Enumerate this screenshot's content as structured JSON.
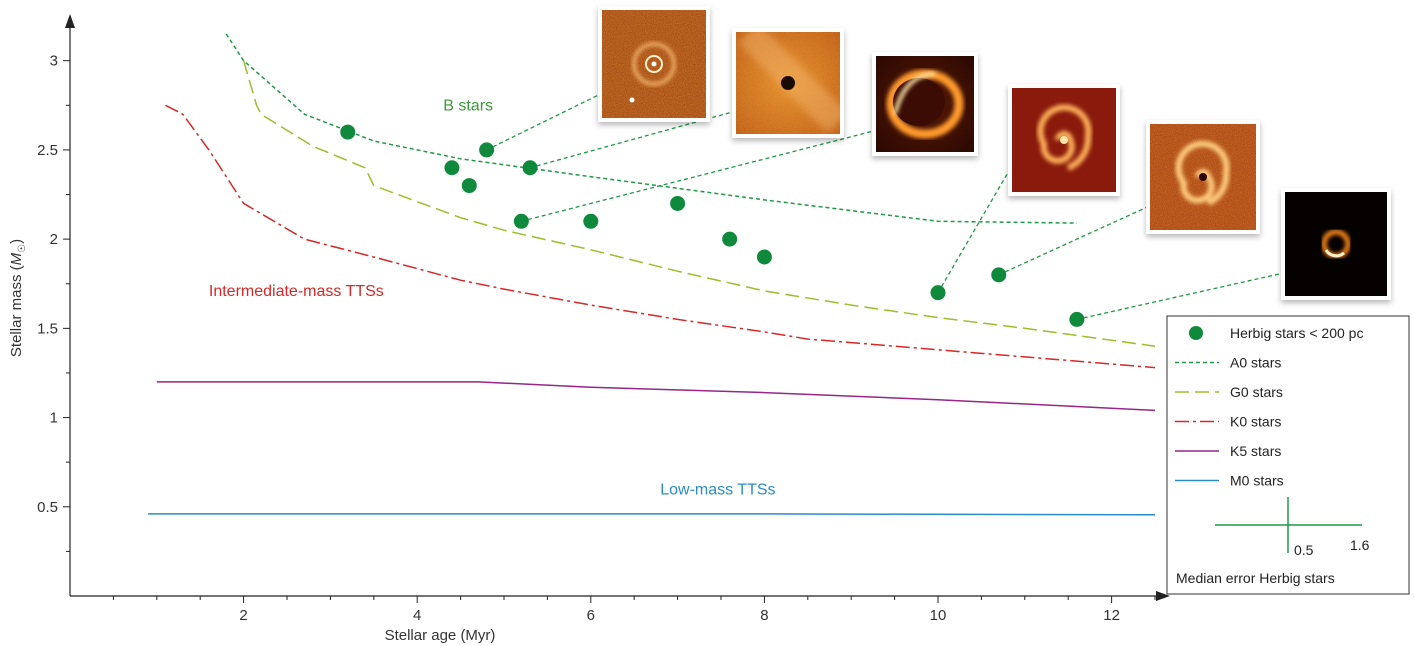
{
  "chart_data": {
    "type": "line",
    "xlabel": "Stellar age (Myr)",
    "ylabel_main": "Stellar mass (",
    "ylabel_var": "M",
    "ylabel_sub": "☉",
    "ylabel_end": ")",
    "xlim": [
      0,
      12.5
    ],
    "ylim": [
      0,
      3.2
    ],
    "x_ticks": [
      2,
      4,
      6,
      8,
      10,
      12
    ],
    "x_ticks_minor_step": 0.5,
    "y_ticks": [
      0.5,
      1,
      1.5,
      2,
      2.5,
      3
    ],
    "y_tick_labels": [
      "0.5",
      "1",
      "1.5",
      "2",
      "2.5",
      "3"
    ],
    "y_ticks_minor_step": 0.25,
    "grid": false,
    "legend_position": "right",
    "annotations": [
      {
        "text": "B stars",
        "x": 4.3,
        "y": 2.72,
        "color": "#3a9a3a"
      },
      {
        "text": "Intermediate-mass TTSs",
        "x": 1.6,
        "y": 1.68,
        "color": "#d62828"
      },
      {
        "text": "Low-mass TTSs",
        "x": 6.8,
        "y": 0.57,
        "color": "#2a8cc8"
      }
    ],
    "series": [
      {
        "name": "A0 stars",
        "color": "#1e9a4a",
        "style": "dash-short",
        "points": [
          [
            1.8,
            3.15
          ],
          [
            2.0,
            3.0
          ],
          [
            2.7,
            2.7
          ],
          [
            3.5,
            2.55
          ],
          [
            4.5,
            2.45
          ],
          [
            6,
            2.35
          ],
          [
            8,
            2.22
          ],
          [
            10,
            2.1
          ],
          [
            11.6,
            2.09
          ]
        ]
      },
      {
        "name": "G0 stars",
        "color": "#9dbd2a",
        "style": "dash-long",
        "points": [
          [
            2.0,
            3.0
          ],
          [
            2.15,
            2.75
          ],
          [
            2.2,
            2.7
          ],
          [
            2.8,
            2.52
          ],
          [
            3.4,
            2.4
          ],
          [
            3.5,
            2.3
          ],
          [
            4.5,
            2.12
          ],
          [
            5,
            2.05
          ],
          [
            6,
            1.94
          ],
          [
            7,
            1.82
          ],
          [
            8,
            1.71
          ],
          [
            9,
            1.63
          ],
          [
            10,
            1.56
          ],
          [
            11,
            1.5
          ],
          [
            12.5,
            1.4
          ]
        ]
      },
      {
        "name": "K0 stars",
        "color": "#d62828",
        "style": "dash-dot",
        "points": [
          [
            1.1,
            2.75
          ],
          [
            1.3,
            2.7
          ],
          [
            1.6,
            2.5
          ],
          [
            2.0,
            2.2
          ],
          [
            2.7,
            2.0
          ],
          [
            3.5,
            1.9
          ],
          [
            4.5,
            1.77
          ],
          [
            5,
            1.72
          ],
          [
            6,
            1.63
          ],
          [
            7,
            1.55
          ],
          [
            8,
            1.48
          ],
          [
            8.5,
            1.44
          ],
          [
            9,
            1.42
          ],
          [
            10,
            1.38
          ],
          [
            11,
            1.34
          ],
          [
            12.5,
            1.28
          ]
        ]
      },
      {
        "name": "K5 stars",
        "color": "#952787",
        "style": "solid",
        "points": [
          [
            1.0,
            1.2
          ],
          [
            4.7,
            1.2
          ],
          [
            6,
            1.17
          ],
          [
            8,
            1.14
          ],
          [
            10,
            1.1
          ],
          [
            12.5,
            1.04
          ]
        ]
      },
      {
        "name": "M0 stars",
        "color": "#2a8cc8",
        "style": "solid",
        "points": [
          [
            0.9,
            0.46
          ],
          [
            4,
            0.46
          ],
          [
            8,
            0.46
          ],
          [
            12.5,
            0.455
          ]
        ]
      }
    ],
    "scatter": {
      "name": "Herbig stars < 200 pc",
      "color": "#0f8a3c",
      "points": [
        [
          3.2,
          2.6
        ],
        [
          4.4,
          2.4
        ],
        [
          4.6,
          2.3
        ],
        [
          4.8,
          2.5
        ],
        [
          5.3,
          2.4
        ],
        [
          5.2,
          2.1
        ],
        [
          6.0,
          2.1
        ],
        [
          7.0,
          2.2
        ],
        [
          7.6,
          2.0
        ],
        [
          8.0,
          1.9
        ],
        [
          10.0,
          1.7
        ],
        [
          10.7,
          1.8
        ],
        [
          11.6,
          1.55
        ]
      ]
    },
    "error_bar": {
      "label": "Median error Herbig stars",
      "x_error": "1.6",
      "y_error": "0.5"
    },
    "disk_images": [
      {
        "name": "disk-image-1",
        "star_index": 3,
        "style": "ring-noisy"
      },
      {
        "name": "disk-image-2",
        "star_index": 4,
        "style": "shadowed"
      },
      {
        "name": "disk-image-3",
        "star_index": 5,
        "style": "ring-bright"
      },
      {
        "name": "disk-image-4",
        "star_index": 10,
        "style": "spiral"
      },
      {
        "name": "disk-image-5",
        "star_index": 11,
        "style": "spiral-noisy"
      },
      {
        "name": "disk-image-6",
        "star_index": 12,
        "style": "small-ring"
      }
    ]
  }
}
